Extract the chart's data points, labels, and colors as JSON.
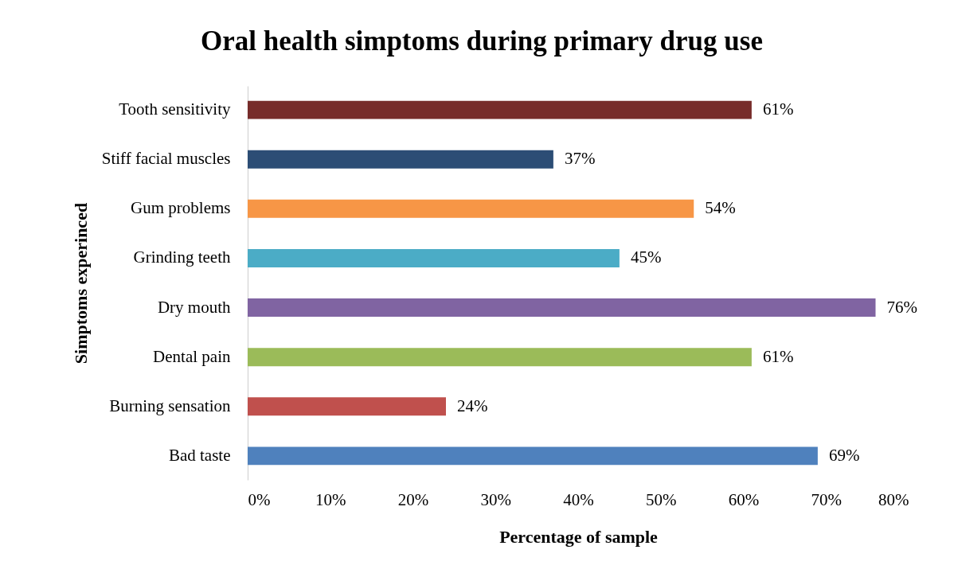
{
  "chart_data": {
    "type": "bar",
    "orientation": "horizontal",
    "title": "Oral health simptoms during primary drug use",
    "xlabel": "Percentage of sample",
    "ylabel": "Simptoms experinced",
    "categories": [
      "Tooth sensitivity",
      "Stiff facial muscles",
      "Gum problems",
      "Grinding teeth",
      "Dry mouth",
      "Dental pain",
      "Burning sensation",
      "Bad taste"
    ],
    "values": [
      61,
      37,
      54,
      45,
      76,
      61,
      24,
      69
    ],
    "colors": [
      "#772c2a",
      "#2c4d75",
      "#f79646",
      "#4bacc6",
      "#8064a2",
      "#9bbb59",
      "#c0504d",
      "#4f81bd"
    ],
    "value_labels": [
      "61%",
      "37%",
      "54%",
      "45%",
      "76%",
      "61%",
      "24%",
      "69%"
    ],
    "xlim": [
      0,
      80
    ],
    "xticks": [
      {
        "value": 0,
        "label": "0%"
      },
      {
        "value": 10,
        "label": "10%"
      },
      {
        "value": 20,
        "label": "20%"
      },
      {
        "value": 30,
        "label": "30%"
      },
      {
        "value": 40,
        "label": "40%"
      },
      {
        "value": 50,
        "label": "50%"
      },
      {
        "value": 60,
        "label": "60%"
      },
      {
        "value": 70,
        "label": "70%"
      },
      {
        "value": 80,
        "label": "80%"
      }
    ],
    "grid": false,
    "legend": false
  }
}
